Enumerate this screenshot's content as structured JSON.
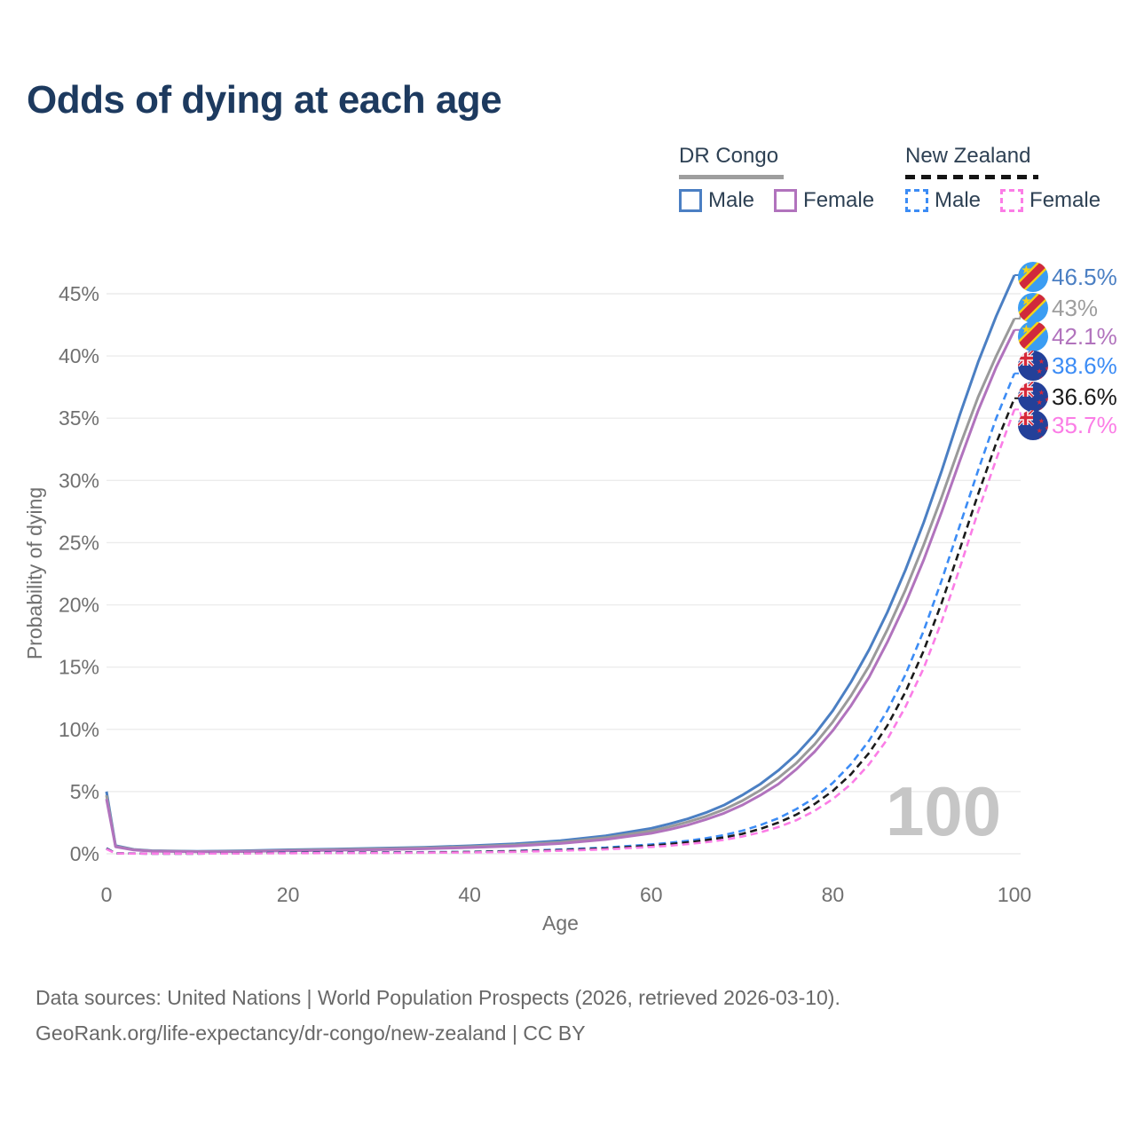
{
  "title": "Odds of dying at each age",
  "legend": {
    "groups": [
      {
        "country": "DR Congo",
        "line_style": "solid",
        "underline_color": "#9e9e9e",
        "items": [
          {
            "label": "Male",
            "color": "#4b7fc3",
            "dashed": false
          },
          {
            "label": "Female",
            "color": "#b173bd",
            "dashed": false
          }
        ]
      },
      {
        "country": "New Zealand",
        "line_style": "dashed",
        "underline_color": "#141414",
        "items": [
          {
            "label": "Male",
            "color": "#3c8cf5",
            "dashed": true
          },
          {
            "label": "Female",
            "color": "#fb7de6",
            "dashed": true
          }
        ]
      }
    ]
  },
  "chart_data": {
    "type": "line",
    "title": "Odds of dying at each age",
    "xlabel": "Age",
    "ylabel": "Probability of dying",
    "xlim": [
      0,
      100
    ],
    "ylim": [
      0,
      47
    ],
    "grid": "horizontal",
    "legend_position": "top-right",
    "watermark": "100",
    "x_tick_values": [
      0,
      20,
      40,
      60,
      80,
      100
    ],
    "x_tick_labels": [
      "0",
      "20",
      "40",
      "60",
      "80",
      "100"
    ],
    "y_tick_values": [
      0,
      5,
      10,
      15,
      20,
      25,
      30,
      35,
      40,
      45
    ],
    "y_tick_labels": [
      "0%",
      "5%",
      "10%",
      "15%",
      "20%",
      "25%",
      "30%",
      "35%",
      "40%",
      "45%"
    ],
    "x": [
      0,
      1,
      3,
      5,
      10,
      15,
      20,
      25,
      30,
      35,
      40,
      45,
      50,
      55,
      60,
      62,
      64,
      66,
      68,
      70,
      72,
      74,
      76,
      78,
      80,
      82,
      84,
      86,
      88,
      90,
      92,
      94,
      96,
      98,
      100
    ],
    "series": [
      {
        "name": "DR Congo Male",
        "color": "#4b7fc3",
        "dashed": false,
        "flag": "cd",
        "end_label": "46.5%",
        "end_label_color": "#4b7fc3",
        "values": [
          5.0,
          0.65,
          0.35,
          0.25,
          0.2,
          0.24,
          0.32,
          0.38,
          0.44,
          0.52,
          0.64,
          0.8,
          1.05,
          1.45,
          2.05,
          2.4,
          2.8,
          3.3,
          3.9,
          4.7,
          5.6,
          6.7,
          8.0,
          9.6,
          11.5,
          13.8,
          16.4,
          19.4,
          22.8,
          26.6,
          30.8,
          35.3,
          39.5,
          43.2,
          46.5
        ]
      },
      {
        "name": "DR Congo Both sexes",
        "color": "#9a9a9a",
        "dashed": false,
        "flag": "cd",
        "end_label": "43%",
        "end_label_color": "#9e9e9e",
        "values": [
          4.7,
          0.6,
          0.33,
          0.23,
          0.18,
          0.21,
          0.28,
          0.33,
          0.39,
          0.46,
          0.57,
          0.71,
          0.93,
          1.3,
          1.85,
          2.17,
          2.55,
          3.0,
          3.55,
          4.25,
          5.1,
          6.1,
          7.3,
          8.8,
          10.6,
          12.7,
          15.1,
          18.0,
          21.2,
          24.8,
          28.7,
          32.8,
          36.7,
          40.0,
          43.0
        ]
      },
      {
        "name": "DR Congo Female",
        "color": "#b173bd",
        "dashed": false,
        "flag": "cd",
        "end_label": "42.1%",
        "end_label_color": "#b173bd",
        "values": [
          4.4,
          0.56,
          0.3,
          0.21,
          0.16,
          0.18,
          0.24,
          0.28,
          0.33,
          0.4,
          0.5,
          0.63,
          0.83,
          1.15,
          1.65,
          1.95,
          2.3,
          2.75,
          3.25,
          3.9,
          4.7,
          5.6,
          6.8,
          8.2,
          9.9,
          11.9,
          14.2,
          17.0,
          20.1,
          23.6,
          27.5,
          31.6,
          35.6,
          39.1,
          42.1
        ]
      },
      {
        "name": "New Zealand Male",
        "color": "#3c8cf5",
        "dashed": true,
        "flag": "nz",
        "end_label": "38.6%",
        "end_label_color": "#3c8cf5",
        "values": [
          0.45,
          0.04,
          0.02,
          0.015,
          0.015,
          0.05,
          0.09,
          0.1,
          0.11,
          0.13,
          0.16,
          0.23,
          0.34,
          0.5,
          0.75,
          0.88,
          1.04,
          1.25,
          1.5,
          1.85,
          2.3,
          2.85,
          3.6,
          4.5,
          5.7,
          7.2,
          9.1,
          11.5,
          14.4,
          17.9,
          22.0,
          26.4,
          30.8,
          35.0,
          38.6
        ]
      },
      {
        "name": "New Zealand Both sexes",
        "color": "#1b1b1b",
        "dashed": true,
        "flag": "nz",
        "end_label": "36.6%",
        "end_label_color": "#1a1a1a",
        "values": [
          0.42,
          0.035,
          0.018,
          0.013,
          0.013,
          0.04,
          0.07,
          0.08,
          0.09,
          0.11,
          0.14,
          0.2,
          0.29,
          0.43,
          0.65,
          0.77,
          0.91,
          1.09,
          1.31,
          1.6,
          2.0,
          2.5,
          3.15,
          4.0,
          5.05,
          6.4,
          8.1,
          10.3,
          13.0,
          16.3,
          20.2,
          24.5,
          28.9,
          33.0,
          36.6
        ]
      },
      {
        "name": "New Zealand Female",
        "color": "#fb7de6",
        "dashed": true,
        "flag": "nz",
        "end_label": "35.7%",
        "end_label_color": "#fb7de6",
        "values": [
          0.38,
          0.03,
          0.015,
          0.012,
          0.012,
          0.03,
          0.045,
          0.055,
          0.065,
          0.085,
          0.11,
          0.16,
          0.24,
          0.36,
          0.55,
          0.65,
          0.78,
          0.93,
          1.12,
          1.38,
          1.72,
          2.15,
          2.7,
          3.45,
          4.4,
          5.6,
          7.2,
          9.2,
          11.8,
          14.9,
          18.7,
          23.0,
          27.5,
          31.7,
          35.7
        ]
      }
    ]
  },
  "footer": {
    "line1": "Data sources: United Nations | World Population Prospects (2026, retrieved 2026-03-10).",
    "line2": "GeoRank.org/life-expectancy/dr-congo/new-zealand | CC BY"
  }
}
